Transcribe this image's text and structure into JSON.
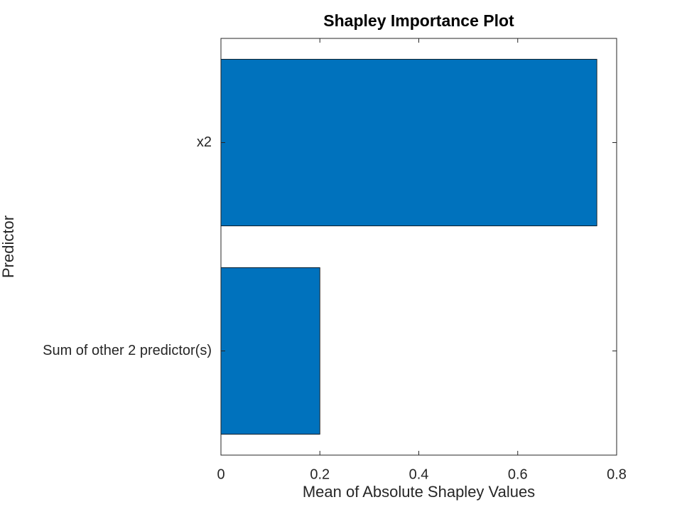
{
  "chart_data": {
    "type": "barh",
    "title": "Shapley Importance Plot",
    "xlabel": "Mean of Absolute Shapley Values",
    "ylabel": "Predictor",
    "categories": [
      "x2",
      "Sum of other 2 predictor(s)"
    ],
    "values": [
      0.76,
      0.2
    ],
    "color": "#0072bd",
    "xlim": [
      0,
      0.8
    ],
    "xticks": [
      0,
      0.2,
      0.4,
      0.6,
      0.8
    ],
    "grid": false
  }
}
